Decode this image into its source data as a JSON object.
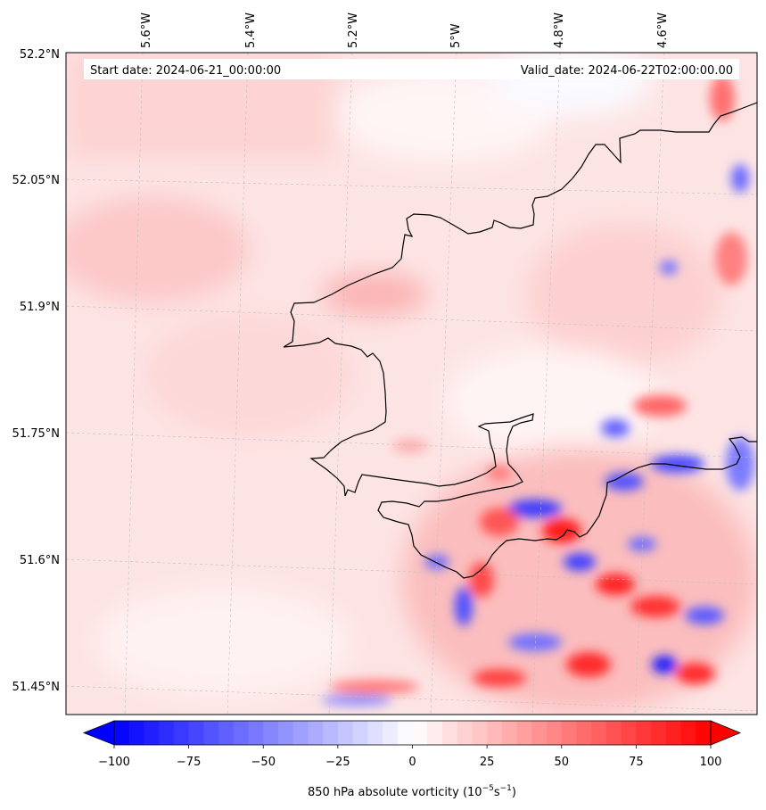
{
  "map": {
    "start_label": "Start date: 2024-06-21_00:00:00",
    "valid_label": "Valid_date: 2024-06-22T02:00:00.00",
    "lon_labels": [
      "5.6°W",
      "5.4°W",
      "5.2°W",
      "5°W",
      "4.8°W",
      "4.6°W"
    ],
    "lat_labels": [
      "52.2°N",
      "52.05°N",
      "51.9°N",
      "51.75°N",
      "51.6°N",
      "51.45°N"
    ],
    "field_name": "850 hPa absolute vorticity",
    "grid_lines": "dashed"
  },
  "colorbar": {
    "label": "850 hPa absolute vorticity (10",
    "label_exp1": "−5",
    "label_mid": "s",
    "label_exp2": "−1",
    "label_close": ")",
    "min": -100,
    "max": 100,
    "ticks": [
      "−100",
      "−75",
      "−50",
      "−25",
      "0",
      "25",
      "50",
      "75",
      "100"
    ],
    "tick_values": [
      -100,
      -75,
      -50,
      -25,
      0,
      25,
      50,
      75,
      100
    ],
    "extend": "both",
    "colormap": "bwr",
    "color_low": "#0000ff",
    "color_mid": "#ffffff",
    "color_high": "#ff0000"
  }
}
